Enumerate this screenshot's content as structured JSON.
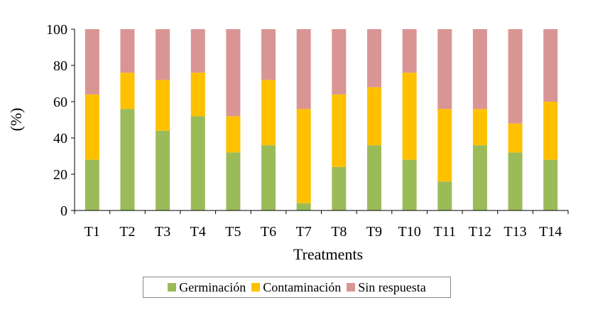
{
  "chart_data": {
    "type": "bar",
    "stacked": true,
    "title": "",
    "xlabel": "Treatments",
    "ylabel": "(%)",
    "ylim": [
      0,
      100
    ],
    "yticks": [
      0,
      20,
      40,
      60,
      80,
      100
    ],
    "grid": false,
    "legend_position": "bottom",
    "categories": [
      "T1",
      "T2",
      "T3",
      "T4",
      "T5",
      "T6",
      "T7",
      "T8",
      "T9",
      "T10",
      "T11",
      "T12",
      "T13",
      "T14"
    ],
    "series": [
      {
        "name": "Germinación",
        "color": "#9bbb59",
        "values": [
          28,
          56,
          44,
          52,
          32,
          36,
          4,
          24,
          36,
          28,
          16,
          36,
          32,
          28
        ]
      },
      {
        "name": "Contaminación",
        "color": "#ffc000",
        "values": [
          36,
          20,
          28,
          24,
          20,
          36,
          52,
          40,
          32,
          48,
          40,
          20,
          16,
          32
        ]
      },
      {
        "name": "Sin respuesta",
        "color": "#d99594",
        "values": [
          36,
          24,
          28,
          24,
          48,
          28,
          44,
          36,
          32,
          24,
          44,
          44,
          52,
          40
        ]
      }
    ]
  }
}
